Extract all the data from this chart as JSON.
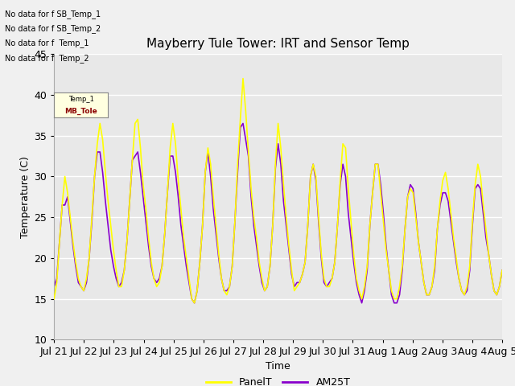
{
  "title": "Mayberry Tule Tower: IRT and Sensor Temp",
  "xlabel": "Time",
  "ylabel": "Temperature (C)",
  "ylim": [
    10,
    45
  ],
  "background_color": "#f0f0f0",
  "plot_bg_color": "#e8e8e8",
  "grid_color": "white",
  "panel_color": "yellow",
  "am25_color": "#8800cc",
  "legend_labels": [
    "PanelT",
    "AM25T"
  ],
  "no_data_texts": [
    "No data for f SB_Temp_1",
    "No data for f SB_Temp_2",
    "No data for f  Temp_1",
    "No data for f  Temp_2"
  ],
  "x_tick_labels": [
    "Jul 21",
    "Jul 22",
    "Jul 23",
    "Jul 24",
    "Jul 25",
    "Jul 26",
    "Jul 27",
    "Jul 28",
    "Jul 29",
    "Jul 30",
    "Jul 31",
    "Aug 1",
    "Aug 2",
    "Aug 3",
    "Aug 4",
    "Aug 5"
  ],
  "tooltip_line1": "Temp_1",
  "tooltip_line2": "MB_Tole",
  "panel_data": [
    15.0,
    17.0,
    22.0,
    26.5,
    30.0,
    28.0,
    25.0,
    22.0,
    19.5,
    17.5,
    16.5,
    16.0,
    17.5,
    20.0,
    25.0,
    30.0,
    34.0,
    36.5,
    34.5,
    30.5,
    27.0,
    24.0,
    21.0,
    18.5,
    16.5,
    16.5,
    18.5,
    22.0,
    27.0,
    32.0,
    36.5,
    37.0,
    33.5,
    29.0,
    26.0,
    22.5,
    19.5,
    17.5,
    16.5,
    17.0,
    19.0,
    23.0,
    28.0,
    33.5,
    36.5,
    34.0,
    29.5,
    26.0,
    22.5,
    20.0,
    17.5,
    15.0,
    14.5,
    16.0,
    19.5,
    24.0,
    30.5,
    33.5,
    31.5,
    27.5,
    24.0,
    20.5,
    17.5,
    16.0,
    15.5,
    16.5,
    19.0,
    24.5,
    31.5,
    37.0,
    42.0,
    38.0,
    33.0,
    28.5,
    25.0,
    22.5,
    19.5,
    17.5,
    16.0,
    16.5,
    19.0,
    24.0,
    31.5,
    36.5,
    33.5,
    29.0,
    25.0,
    21.5,
    18.5,
    16.0,
    16.5,
    17.0,
    18.0,
    19.5,
    24.0,
    30.0,
    31.5,
    30.0,
    25.0,
    20.5,
    17.5,
    16.5,
    16.5,
    17.5,
    19.5,
    24.0,
    29.5,
    34.0,
    33.5,
    28.5,
    24.5,
    20.5,
    17.5,
    16.0,
    15.0,
    16.5,
    19.0,
    24.0,
    28.0,
    31.5,
    31.5,
    28.0,
    24.5,
    21.0,
    18.5,
    16.0,
    15.0,
    15.0,
    16.5,
    19.0,
    23.5,
    27.5,
    28.5,
    28.0,
    25.0,
    22.0,
    19.5,
    17.0,
    15.5,
    15.5,
    16.5,
    19.0,
    23.5,
    27.0,
    29.5,
    30.5,
    28.5,
    25.5,
    22.5,
    20.0,
    17.5,
    16.0,
    15.5,
    16.5,
    19.0,
    24.5,
    29.0,
    31.5,
    30.0,
    26.5,
    23.5,
    20.5,
    18.0,
    16.0,
    15.5,
    16.5,
    18.5
  ],
  "am25_data": [
    16.5,
    17.5,
    22.0,
    26.5,
    26.5,
    27.5,
    24.5,
    21.5,
    19.0,
    17.0,
    16.5,
    16.0,
    17.0,
    20.0,
    24.5,
    30.0,
    33.0,
    33.0,
    30.5,
    27.0,
    24.0,
    21.0,
    19.0,
    17.5,
    16.5,
    17.0,
    18.5,
    22.0,
    27.0,
    32.0,
    32.5,
    33.0,
    30.5,
    27.5,
    24.5,
    21.5,
    19.0,
    17.5,
    17.0,
    17.5,
    19.0,
    23.0,
    28.0,
    32.5,
    32.5,
    30.5,
    27.5,
    24.0,
    21.5,
    19.0,
    17.0,
    15.0,
    14.5,
    16.0,
    19.5,
    24.0,
    30.5,
    33.0,
    30.0,
    26.0,
    23.0,
    20.0,
    17.5,
    16.0,
    16.0,
    16.5,
    19.0,
    24.5,
    30.5,
    36.0,
    36.5,
    34.5,
    32.5,
    27.5,
    24.0,
    21.5,
    19.0,
    17.0,
    16.0,
    16.5,
    19.0,
    24.0,
    31.0,
    34.0,
    31.5,
    27.0,
    24.0,
    21.0,
    18.0,
    16.5,
    17.0,
    17.0,
    18.0,
    19.5,
    24.0,
    30.0,
    31.5,
    29.5,
    24.5,
    20.0,
    17.0,
    16.5,
    17.0,
    17.5,
    19.5,
    24.0,
    29.0,
    31.5,
    30.0,
    25.5,
    22.5,
    19.5,
    17.0,
    15.5,
    14.5,
    16.0,
    18.5,
    24.0,
    28.0,
    31.5,
    31.5,
    29.0,
    25.5,
    21.5,
    18.5,
    15.5,
    14.5,
    14.5,
    15.5,
    18.5,
    23.5,
    27.5,
    29.0,
    28.5,
    25.5,
    22.0,
    19.5,
    17.0,
    15.5,
    15.5,
    16.5,
    18.5,
    23.5,
    26.5,
    28.0,
    28.0,
    27.0,
    24.5,
    22.0,
    19.5,
    17.5,
    16.0,
    15.5,
    16.0,
    18.5,
    24.0,
    28.5,
    29.0,
    28.5,
    25.5,
    22.5,
    20.5,
    18.0,
    16.0,
    15.5,
    16.5,
    18.5
  ]
}
